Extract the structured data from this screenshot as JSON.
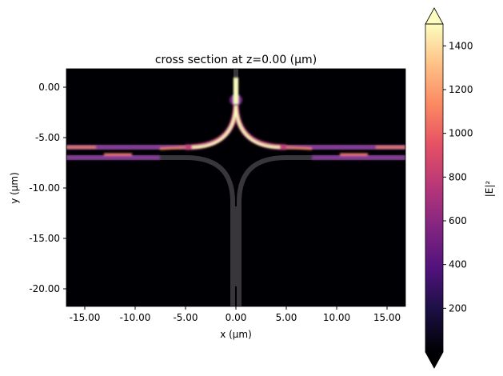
{
  "chart_data": {
    "type": "heatmap",
    "title": "cross section at z=0.00 (µm)",
    "xlabel": "x (µm)",
    "ylabel": "y (µm)",
    "xlim": [
      -16.8,
      16.8
    ],
    "ylim": [
      -21.7,
      1.8
    ],
    "xticks": [
      -15,
      -10,
      -5,
      0,
      5,
      10,
      15
    ],
    "xtick_labels": [
      "-15.00",
      "-10.00",
      "-5.00",
      "0.00",
      "5.00",
      "10.00",
      "15.00"
    ],
    "yticks": [
      0,
      -5,
      -10,
      -15,
      -20
    ],
    "ytick_labels": [
      "0.00",
      "-5.00",
      "-10.00",
      "-15.00",
      "-20.00"
    ],
    "colormap": "magma",
    "colorbar": {
      "label": "|E|²",
      "range": [
        0,
        1500
      ],
      "ticks": [
        200,
        400,
        600,
        800,
        1000,
        1200,
        1400
      ],
      "tick_labels": [
        "200",
        "400",
        "600",
        "800",
        "1000",
        "1200",
        "1400"
      ],
      "extend": "both"
    },
    "grid": false,
    "background_color": "#000004",
    "structure_color": "#38363b"
  }
}
